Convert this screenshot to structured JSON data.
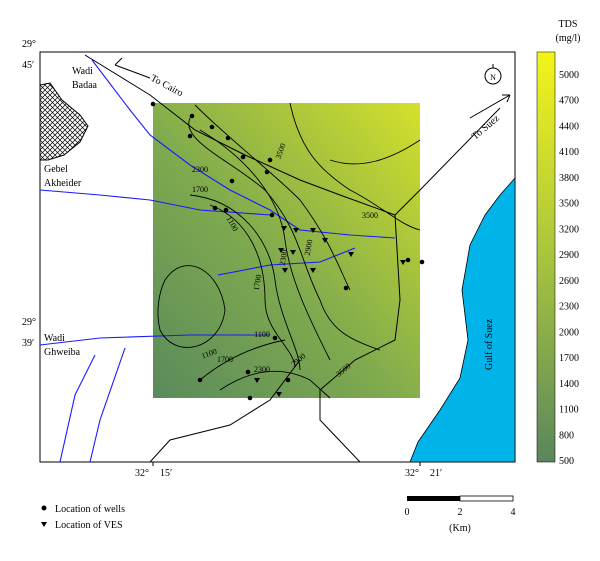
{
  "coordinates": {
    "north": {
      "deg": "29°",
      "min": "45′"
    },
    "middle": {
      "deg": "29°",
      "min": "39′"
    },
    "west": {
      "deg": "32°",
      "min": "15′"
    },
    "east": {
      "deg": "32°",
      "min": "21′"
    }
  },
  "places": {
    "wadi_badaa": [
      "Wadi",
      "Badaa"
    ],
    "gebel_akheider": [
      "Gebel",
      "Akheider"
    ],
    "wadi_ghweiba": [
      "Wadi",
      "Ghweiba"
    ],
    "to_cairo": "To Cairo",
    "to_suez": "To Suez",
    "gulf": "Gulf of Suez",
    "north_arrow": "N"
  },
  "contour_labels": [
    "3500",
    "2300",
    "1700",
    "1100",
    "3500",
    "2900",
    "2300",
    "1700",
    "1100",
    "1700",
    "2300",
    "2900",
    "3500",
    "1100"
  ],
  "colorbar": {
    "title": "TDS",
    "unit": "(mg/l)",
    "labels": [
      "5000",
      "4700",
      "4400",
      "4100",
      "3800",
      "3500",
      "3200",
      "2900",
      "2600",
      "2300",
      "2000",
      "1700",
      "1400",
      "1100",
      "800",
      "500"
    ]
  },
  "legend": {
    "wells": "Location of wells",
    "ves": "Location of VES"
  },
  "scale": {
    "ticks": [
      "0",
      "2",
      "4"
    ],
    "unit": "(Km)"
  }
}
